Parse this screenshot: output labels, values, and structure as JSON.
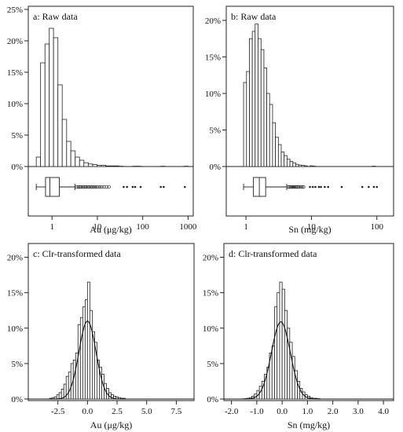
{
  "chart_data": [
    {
      "type": "bar",
      "panel": "a",
      "title": "a: Raw data",
      "xlabel": "Au (μg/kg)",
      "ylabel": "",
      "x_scale": "log",
      "xlim": [
        0.3,
        1300
      ],
      "ylim": [
        0,
        25
      ],
      "y_ticks": [
        0,
        5,
        10,
        15,
        20,
        25
      ],
      "y_tick_labels": [
        "0%",
        "5%",
        "10%",
        "15%",
        "20%",
        "25%"
      ],
      "x_ticks": [
        1,
        10,
        100,
        1000
      ],
      "x_tick_labels": [
        "1",
        "10",
        "100",
        "1000"
      ],
      "bins": [
        {
          "x0": 0.45,
          "x1": 0.56,
          "y": 1.5
        },
        {
          "x0": 0.56,
          "x1": 0.7,
          "y": 16.5
        },
        {
          "x0": 0.7,
          "x1": 0.87,
          "y": 19.5
        },
        {
          "x0": 0.87,
          "x1": 1.08,
          "y": 22
        },
        {
          "x0": 1.08,
          "x1": 1.35,
          "y": 20.5
        },
        {
          "x0": 1.35,
          "x1": 1.68,
          "y": 13
        },
        {
          "x0": 1.68,
          "x1": 2.1,
          "y": 7.5
        },
        {
          "x0": 2.1,
          "x1": 2.6,
          "y": 4
        },
        {
          "x0": 2.6,
          "x1": 3.25,
          "y": 2.5
        },
        {
          "x0": 3.25,
          "x1": 4.05,
          "y": 1.5
        },
        {
          "x0": 4.05,
          "x1": 5.05,
          "y": 1
        },
        {
          "x0": 5.05,
          "x1": 6.3,
          "y": 0.6
        },
        {
          "x0": 6.3,
          "x1": 7.85,
          "y": 0.4
        },
        {
          "x0": 7.85,
          "x1": 9.8,
          "y": 0.3
        },
        {
          "x0": 9.8,
          "x1": 12.2,
          "y": 0.2
        },
        {
          "x0": 12.2,
          "x1": 15.2,
          "y": 0.2
        },
        {
          "x0": 15.2,
          "x1": 19,
          "y": 0.1
        },
        {
          "x0": 19,
          "x1": 23.7,
          "y": 0.1
        },
        {
          "x0": 23.7,
          "x1": 29.5,
          "y": 0.1
        },
        {
          "x0": 29.5,
          "x1": 36.8,
          "y": 0.05
        },
        {
          "x0": 60,
          "x1": 75,
          "y": 0.05
        },
        {
          "x0": 75,
          "x1": 93,
          "y": 0.05
        },
        {
          "x0": 250,
          "x1": 310,
          "y": 0.05
        },
        {
          "x0": 820,
          "x1": 1000,
          "y": 0.05
        }
      ],
      "boxplot": {
        "whisker_low": 0.45,
        "q1": 0.72,
        "median": 0.9,
        "q3": 1.45,
        "whisker_high": 3.2,
        "outliers": [
          3.5,
          3.8,
          4.1,
          4.4,
          4.8,
          5.2,
          5.6,
          6.1,
          6.6,
          7.2,
          7.8,
          8.5,
          9.3,
          10.2,
          11.3,
          12.5,
          14,
          16,
          18
        ],
        "extremes": [
          38,
          45,
          60,
          68,
          90,
          250,
          290,
          850
        ]
      }
    },
    {
      "type": "bar",
      "panel": "b",
      "title": "b: Raw data",
      "xlabel": "Sn (mg/kg)",
      "ylabel": "",
      "x_scale": "log",
      "xlim": [
        0.5,
        180
      ],
      "ylim": [
        0,
        21.5
      ],
      "y_ticks": [
        0,
        5,
        10,
        15,
        20
      ],
      "y_tick_labels": [
        "0%",
        "5%",
        "10%",
        "15%",
        "20%"
      ],
      "x_ticks": [
        1,
        10,
        100
      ],
      "x_tick_labels": [
        "1",
        "10",
        "100"
      ],
      "bins": [
        {
          "x0": 0.92,
          "x1": 1.02,
          "y": 11.5
        },
        {
          "x0": 1.02,
          "x1": 1.13,
          "y": 13
        },
        {
          "x0": 1.13,
          "x1": 1.25,
          "y": 17.5
        },
        {
          "x0": 1.25,
          "x1": 1.38,
          "y": 18.5
        },
        {
          "x0": 1.38,
          "x1": 1.53,
          "y": 19.5
        },
        {
          "x0": 1.53,
          "x1": 1.7,
          "y": 17.5
        },
        {
          "x0": 1.7,
          "x1": 1.88,
          "y": 16
        },
        {
          "x0": 1.88,
          "x1": 2.08,
          "y": 13.5
        },
        {
          "x0": 2.08,
          "x1": 2.3,
          "y": 10
        },
        {
          "x0": 2.3,
          "x1": 2.55,
          "y": 8.5
        },
        {
          "x0": 2.55,
          "x1": 2.82,
          "y": 6
        },
        {
          "x0": 2.82,
          "x1": 3.13,
          "y": 4
        },
        {
          "x0": 3.13,
          "x1": 3.46,
          "y": 3
        },
        {
          "x0": 3.46,
          "x1": 3.83,
          "y": 2
        },
        {
          "x0": 3.83,
          "x1": 4.24,
          "y": 1.5
        },
        {
          "x0": 4.24,
          "x1": 4.7,
          "y": 1
        },
        {
          "x0": 4.7,
          "x1": 5.2,
          "y": 0.7
        },
        {
          "x0": 5.2,
          "x1": 5.76,
          "y": 0.5
        },
        {
          "x0": 5.76,
          "x1": 6.38,
          "y": 0.3
        },
        {
          "x0": 6.38,
          "x1": 7.06,
          "y": 0.2
        },
        {
          "x0": 7.06,
          "x1": 7.82,
          "y": 0.15
        },
        {
          "x0": 7.82,
          "x1": 8.66,
          "y": 0.1
        },
        {
          "x0": 9.5,
          "x1": 10.5,
          "y": 0.1
        },
        {
          "x0": 10.5,
          "x1": 11.6,
          "y": 0.05
        },
        {
          "x0": 85,
          "x1": 95,
          "y": 0.05
        }
      ],
      "boxplot": {
        "whisker_low": 0.92,
        "q1": 1.3,
        "median": 1.6,
        "q3": 2.0,
        "whisker_high": 4.2,
        "outliers": [
          4.4,
          4.6,
          4.8,
          5,
          5.2,
          5.4,
          5.6,
          5.8,
          6.1,
          6.4,
          6.8,
          7.2,
          7.6
        ],
        "extremes": [
          9.5,
          10.5,
          11.5,
          13,
          14,
          16,
          18,
          29,
          60,
          75,
          90,
          100
        ]
      }
    },
    {
      "type": "bar",
      "panel": "c",
      "title": "c: Clr-transformed data",
      "xlabel": "Au (μg/kg)",
      "ylabel": "",
      "x_scale": "linear",
      "xlim": [
        -5,
        9
      ],
      "ylim": [
        0,
        21.5
      ],
      "y_ticks": [
        0,
        5,
        10,
        15,
        20
      ],
      "y_tick_labels": [
        "0%",
        "5%",
        "10%",
        "15%",
        "20%"
      ],
      "x_ticks": [
        -2.5,
        0,
        2.5,
        5,
        7.5
      ],
      "x_tick_labels": [
        "-2.5",
        "0.0",
        "2.5",
        "5.0",
        "7.5"
      ],
      "bin_width": 0.2,
      "bin_start": -3.2,
      "heights": [
        0.1,
        0.2,
        0.3,
        0.6,
        0.9,
        1.4,
        2.1,
        3.2,
        3.8,
        5,
        5.5,
        6.5,
        10.5,
        11.5,
        13,
        14,
        16.5,
        12.5,
        9.5,
        8,
        5.5,
        4.5,
        3.5,
        2.2,
        1.5,
        0.9,
        0.6,
        0.4,
        0.3,
        0.2,
        0.1,
        0.1
      ],
      "fit": {
        "type": "normal",
        "mean": 0.0,
        "sd": 0.72,
        "peak": 11
      }
    },
    {
      "type": "bar",
      "panel": "d",
      "title": "d: Clr-transformed data",
      "xlabel": "Sn (mg/kg)",
      "ylabel": "",
      "x_scale": "linear",
      "xlim": [
        -2.3,
        4.4
      ],
      "ylim": [
        0,
        21.5
      ],
      "y_ticks": [
        0,
        5,
        10,
        15,
        20
      ],
      "y_tick_labels": [
        "0%",
        "5%",
        "10%",
        "15%",
        "20%"
      ],
      "x_ticks": [
        -2,
        -1,
        0,
        1,
        2,
        3,
        4
      ],
      "x_tick_labels": [
        "-2.0",
        "-1.0",
        "0.0",
        "1.0",
        "2.0",
        "3.0",
        "4.0"
      ],
      "bin_width": 0.1,
      "bin_start": -1.5,
      "heights": [
        0.05,
        0.1,
        0.2,
        0.4,
        0.7,
        1.2,
        1.8,
        2.5,
        3.5,
        4.5,
        6.5,
        7.5,
        13,
        15,
        16.5,
        15.5,
        12.5,
        10,
        8,
        6,
        4,
        2.5,
        1.5,
        1,
        0.6,
        0.4,
        0.2,
        0.1,
        0.1,
        0.05
      ],
      "fit": {
        "type": "normal",
        "mean": -0.05,
        "sd": 0.37,
        "peak": 10.9
      }
    }
  ]
}
